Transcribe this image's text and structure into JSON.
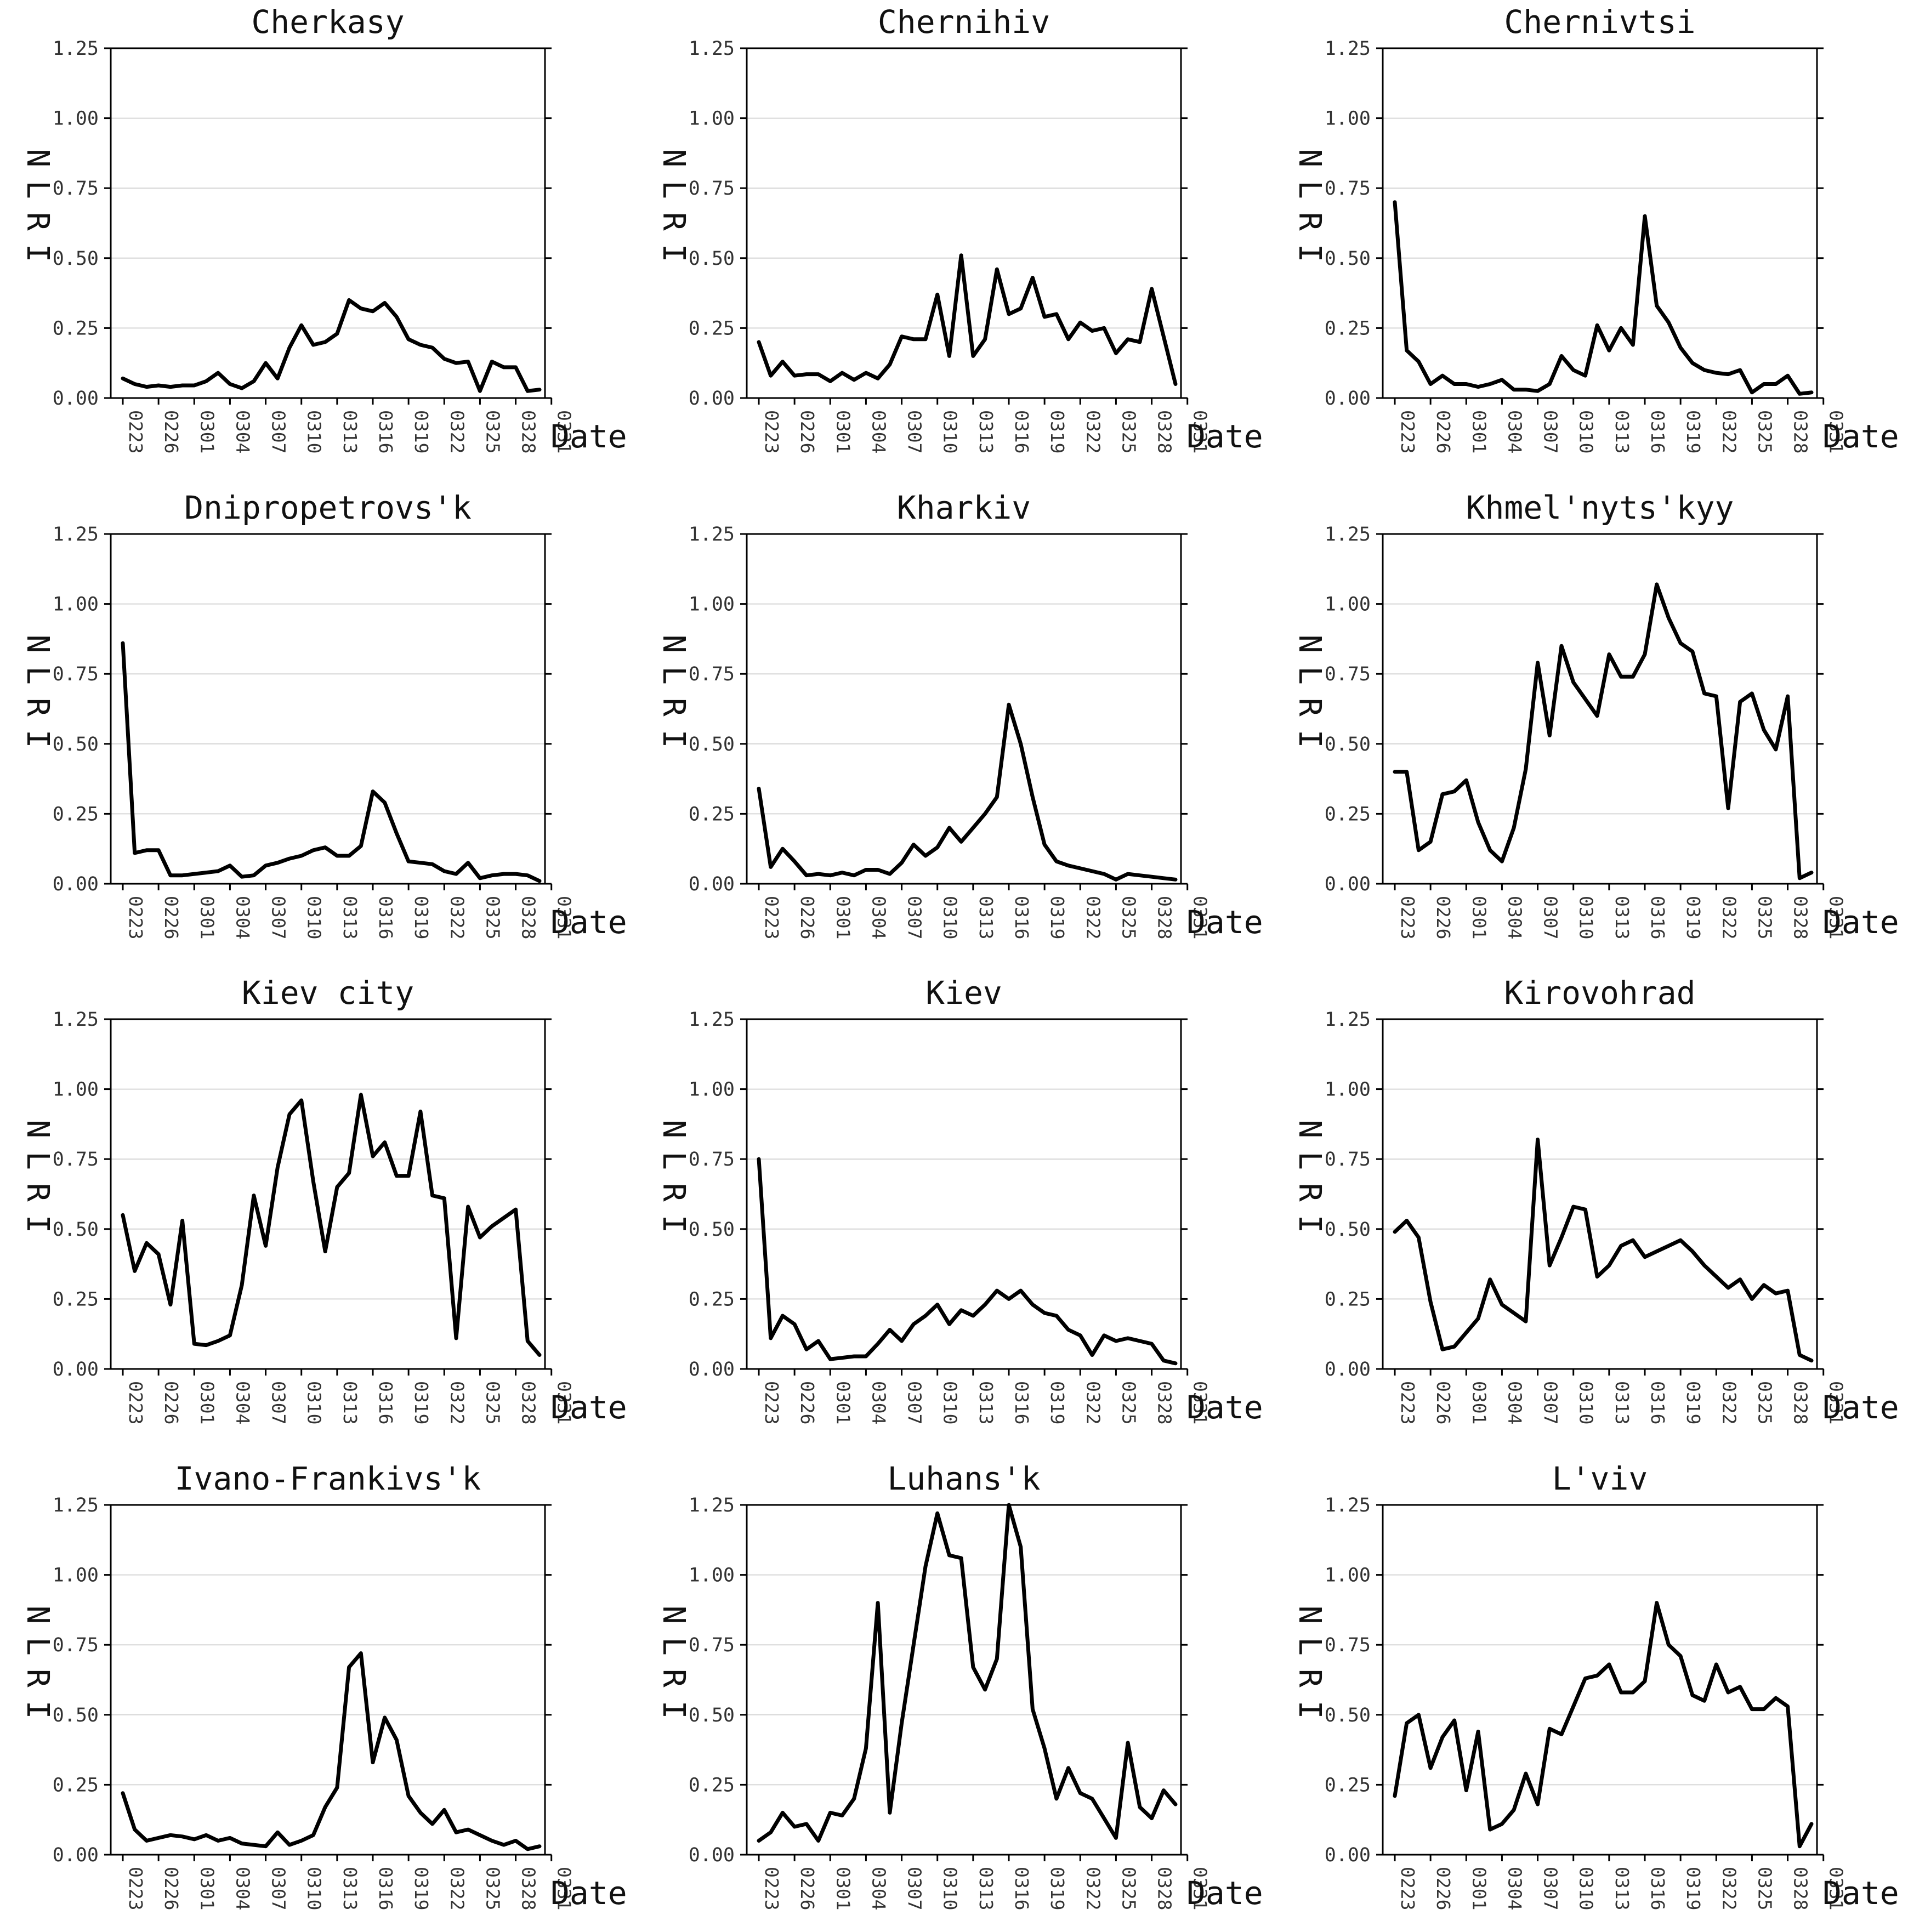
{
  "chart_data": [
    {
      "type": "line",
      "title": "Cherkasy",
      "xlabel": "Date",
      "ylabel": "NLRI",
      "yticks": [
        "0.00",
        "0.25",
        "0.50",
        "0.75",
        "1.00",
        "1.25"
      ],
      "xticks": [
        "0223",
        "0226",
        "0301",
        "0304",
        "0307",
        "0310",
        "0313",
        "0316",
        "0319",
        "0322",
        "0325",
        "0328",
        "0331"
      ],
      "ylim": [
        0,
        1.25
      ],
      "values": [
        0.07,
        0.05,
        0.04,
        0.045,
        0.04,
        0.045,
        0.045,
        0.06,
        0.09,
        0.05,
        0.035,
        0.06,
        0.125,
        0.07,
        0.18,
        0.26,
        0.19,
        0.2,
        0.23,
        0.35,
        0.32,
        0.31,
        0.34,
        0.29,
        0.21,
        0.19,
        0.18,
        0.14,
        0.125,
        0.13,
        0.025,
        0.13,
        0.11,
        0.11,
        0.025,
        0.03
      ]
    },
    {
      "type": "line",
      "title": "Chernihiv",
      "xlabel": "Date",
      "ylabel": "NLRI",
      "yticks": [
        "0.00",
        "0.25",
        "0.50",
        "0.75",
        "1.00",
        "1.25"
      ],
      "xticks": [
        "0223",
        "0226",
        "0301",
        "0304",
        "0307",
        "0310",
        "0313",
        "0316",
        "0319",
        "0322",
        "0325",
        "0328",
        "0331"
      ],
      "ylim": [
        0,
        1.25
      ],
      "values": [
        0.2,
        0.08,
        0.13,
        0.08,
        0.085,
        0.085,
        0.06,
        0.09,
        0.065,
        0.09,
        0.07,
        0.12,
        0.22,
        0.21,
        0.21,
        0.37,
        0.15,
        0.51,
        0.15,
        0.21,
        0.46,
        0.3,
        0.32,
        0.43,
        0.29,
        0.3,
        0.21,
        0.27,
        0.24,
        0.25,
        0.16,
        0.21,
        0.2,
        0.39,
        0.22,
        0.05
      ]
    },
    {
      "type": "line",
      "title": "Chernivtsi",
      "xlabel": "Date",
      "ylabel": "NLRI",
      "yticks": [
        "0.00",
        "0.25",
        "0.50",
        "0.75",
        "1.00",
        "1.25"
      ],
      "xticks": [
        "0223",
        "0226",
        "0301",
        "0304",
        "0307",
        "0310",
        "0313",
        "0316",
        "0319",
        "0322",
        "0325",
        "0328",
        "0331"
      ],
      "ylim": [
        0,
        1.25
      ],
      "values": [
        0.7,
        0.17,
        0.13,
        0.05,
        0.08,
        0.05,
        0.05,
        0.04,
        0.05,
        0.065,
        0.03,
        0.03,
        0.025,
        0.05,
        0.15,
        0.1,
        0.08,
        0.26,
        0.17,
        0.25,
        0.19,
        0.65,
        0.33,
        0.27,
        0.18,
        0.125,
        0.1,
        0.09,
        0.085,
        0.1,
        0.02,
        0.05,
        0.05,
        0.08,
        0.015,
        0.02
      ]
    },
    {
      "type": "line",
      "title": "Dnipropetrovs'k",
      "xlabel": "Date",
      "ylabel": "NLRI",
      "yticks": [
        "0.00",
        "0.25",
        "0.50",
        "0.75",
        "1.00",
        "1.25"
      ],
      "xticks": [
        "0223",
        "0226",
        "0301",
        "0304",
        "0307",
        "0310",
        "0313",
        "0316",
        "0319",
        "0322",
        "0325",
        "0328",
        "0331"
      ],
      "ylim": [
        0,
        1.25
      ],
      "values": [
        0.86,
        0.11,
        0.12,
        0.12,
        0.03,
        0.03,
        0.035,
        0.04,
        0.045,
        0.065,
        0.025,
        0.03,
        0.065,
        0.075,
        0.09,
        0.1,
        0.12,
        0.13,
        0.1,
        0.1,
        0.135,
        0.33,
        0.29,
        0.18,
        0.08,
        0.075,
        0.07,
        0.045,
        0.035,
        0.075,
        0.02,
        0.03,
        0.035,
        0.035,
        0.03,
        0.01
      ]
    },
    {
      "type": "line",
      "title": "Kharkiv",
      "xlabel": "Date",
      "ylabel": "NLRI",
      "yticks": [
        "0.00",
        "0.25",
        "0.50",
        "0.75",
        "1.00",
        "1.25"
      ],
      "xticks": [
        "0223",
        "0226",
        "0301",
        "0304",
        "0307",
        "0310",
        "0313",
        "0316",
        "0319",
        "0322",
        "0325",
        "0328",
        "0331"
      ],
      "ylim": [
        0,
        1.25
      ],
      "values": [
        0.34,
        0.06,
        0.125,
        0.08,
        0.03,
        0.035,
        0.03,
        0.04,
        0.03,
        0.05,
        0.05,
        0.035,
        0.075,
        0.14,
        0.1,
        0.13,
        0.2,
        0.15,
        0.2,
        0.25,
        0.31,
        0.64,
        0.5,
        0.31,
        0.14,
        0.08,
        0.065,
        0.055,
        0.045,
        0.035,
        0.015,
        0.035,
        0.03,
        0.025,
        0.02,
        0.015
      ]
    },
    {
      "type": "line",
      "title": "Khmel'nyts'kyy",
      "xlabel": "Date",
      "ylabel": "NLRI",
      "yticks": [
        "0.00",
        "0.25",
        "0.50",
        "0.75",
        "1.00",
        "1.25"
      ],
      "xticks": [
        "0223",
        "0226",
        "0301",
        "0304",
        "0307",
        "0310",
        "0313",
        "0316",
        "0319",
        "0322",
        "0325",
        "0328",
        "0331"
      ],
      "ylim": [
        0,
        1.25
      ],
      "values": [
        0.4,
        0.4,
        0.12,
        0.15,
        0.32,
        0.33,
        0.37,
        0.22,
        0.12,
        0.08,
        0.2,
        0.41,
        0.79,
        0.53,
        0.85,
        0.72,
        0.66,
        0.6,
        0.82,
        0.74,
        0.74,
        0.82,
        1.07,
        0.95,
        0.86,
        0.83,
        0.68,
        0.67,
        0.27,
        0.65,
        0.68,
        0.55,
        0.48,
        0.67,
        0.02,
        0.04
      ]
    },
    {
      "type": "line",
      "title": "Kiev city",
      "xlabel": "Date",
      "ylabel": "NLRI",
      "yticks": [
        "0.00",
        "0.25",
        "0.50",
        "0.75",
        "1.00",
        "1.25"
      ],
      "xticks": [
        "0223",
        "0226",
        "0301",
        "0304",
        "0307",
        "0310",
        "0313",
        "0316",
        "0319",
        "0322",
        "0325",
        "0328",
        "0331"
      ],
      "ylim": [
        0,
        1.25
      ],
      "values": [
        0.55,
        0.35,
        0.45,
        0.41,
        0.23,
        0.53,
        0.09,
        0.085,
        0.1,
        0.12,
        0.3,
        0.62,
        0.44,
        0.72,
        0.91,
        0.96,
        0.67,
        0.42,
        0.65,
        0.7,
        0.98,
        0.76,
        0.81,
        0.69,
        0.69,
        0.92,
        0.62,
        0.61,
        0.11,
        0.58,
        0.47,
        0.51,
        0.54,
        0.57,
        0.1,
        0.05
      ]
    },
    {
      "type": "line",
      "title": "Kiev",
      "xlabel": "Date",
      "ylabel": "NLRI",
      "yticks": [
        "0.00",
        "0.25",
        "0.50",
        "0.75",
        "1.00",
        "1.25"
      ],
      "xticks": [
        "0223",
        "0226",
        "0301",
        "0304",
        "0307",
        "0310",
        "0313",
        "0316",
        "0319",
        "0322",
        "0325",
        "0328",
        "0331"
      ],
      "ylim": [
        0,
        1.25
      ],
      "values": [
        0.75,
        0.11,
        0.19,
        0.16,
        0.07,
        0.1,
        0.035,
        0.04,
        0.045,
        0.045,
        0.09,
        0.14,
        0.1,
        0.16,
        0.19,
        0.23,
        0.16,
        0.21,
        0.19,
        0.23,
        0.28,
        0.25,
        0.28,
        0.23,
        0.2,
        0.19,
        0.14,
        0.12,
        0.05,
        0.12,
        0.1,
        0.11,
        0.1,
        0.09,
        0.03,
        0.02
      ]
    },
    {
      "type": "line",
      "title": "Kirovohrad",
      "xlabel": "Date",
      "ylabel": "NLRI",
      "yticks": [
        "0.00",
        "0.25",
        "0.50",
        "0.75",
        "1.00",
        "1.25"
      ],
      "xticks": [
        "0223",
        "0226",
        "0301",
        "0304",
        "0307",
        "0310",
        "0313",
        "0316",
        "0319",
        "0322",
        "0325",
        "0328",
        "0331"
      ],
      "ylim": [
        0,
        1.25
      ],
      "values": [
        0.49,
        0.53,
        0.47,
        0.24,
        0.07,
        0.08,
        0.13,
        0.18,
        0.32,
        0.23,
        0.2,
        0.17,
        0.82,
        0.37,
        0.47,
        0.58,
        0.57,
        0.33,
        0.37,
        0.44,
        0.46,
        0.4,
        0.42,
        0.44,
        0.46,
        0.42,
        0.37,
        0.33,
        0.29,
        0.32,
        0.25,
        0.3,
        0.27,
        0.28,
        0.05,
        0.03
      ]
    },
    {
      "type": "line",
      "title": "Ivano-Frankivs'k",
      "xlabel": "Date",
      "ylabel": "NLRI",
      "yticks": [
        "0.00",
        "0.25",
        "0.50",
        "0.75",
        "1.00",
        "1.25"
      ],
      "xticks": [
        "0223",
        "0226",
        "0301",
        "0304",
        "0307",
        "0310",
        "0313",
        "0316",
        "0319",
        "0322",
        "0325",
        "0328",
        "0331"
      ],
      "ylim": [
        0,
        1.25
      ],
      "values": [
        0.22,
        0.09,
        0.05,
        0.06,
        0.07,
        0.065,
        0.055,
        0.07,
        0.05,
        0.06,
        0.04,
        0.035,
        0.03,
        0.08,
        0.035,
        0.05,
        0.07,
        0.17,
        0.24,
        0.67,
        0.72,
        0.33,
        0.49,
        0.41,
        0.21,
        0.15,
        0.11,
        0.16,
        0.08,
        0.09,
        0.07,
        0.05,
        0.035,
        0.05,
        0.02,
        0.03
      ]
    },
    {
      "type": "line",
      "title": "Luhans'k",
      "xlabel": "Date",
      "ylabel": "NLRI",
      "yticks": [
        "0.00",
        "0.25",
        "0.50",
        "0.75",
        "1.00",
        "1.25"
      ],
      "xticks": [
        "0223",
        "0226",
        "0301",
        "0304",
        "0307",
        "0310",
        "0313",
        "0316",
        "0319",
        "0322",
        "0325",
        "0328",
        "0331"
      ],
      "ylim": [
        0,
        1.25
      ],
      "values": [
        0.05,
        0.08,
        0.15,
        0.1,
        0.11,
        0.05,
        0.15,
        0.14,
        0.2,
        0.38,
        0.9,
        0.15,
        0.47,
        0.75,
        1.03,
        1.22,
        1.07,
        1.06,
        0.67,
        0.59,
        0.7,
        1.25,
        1.1,
        0.52,
        0.38,
        0.2,
        0.31,
        0.22,
        0.2,
        0.13,
        0.06,
        0.4,
        0.17,
        0.13,
        0.23,
        0.18
      ]
    },
    {
      "type": "line",
      "title": "L'viv",
      "xlabel": "Date",
      "ylabel": "NLRI",
      "yticks": [
        "0.00",
        "0.25",
        "0.50",
        "0.75",
        "1.00",
        "1.25"
      ],
      "xticks": [
        "0223",
        "0226",
        "0301",
        "0304",
        "0307",
        "0310",
        "0313",
        "0316",
        "0319",
        "0322",
        "0325",
        "0328",
        "0331"
      ],
      "ylim": [
        0,
        1.25
      ],
      "values": [
        0.21,
        0.47,
        0.5,
        0.31,
        0.42,
        0.48,
        0.23,
        0.44,
        0.09,
        0.11,
        0.16,
        0.29,
        0.18,
        0.45,
        0.43,
        0.53,
        0.63,
        0.64,
        0.68,
        0.58,
        0.58,
        0.62,
        0.9,
        0.75,
        0.71,
        0.57,
        0.55,
        0.68,
        0.58,
        0.6,
        0.52,
        0.52,
        0.56,
        0.53,
        0.03,
        0.11
      ]
    }
  ]
}
